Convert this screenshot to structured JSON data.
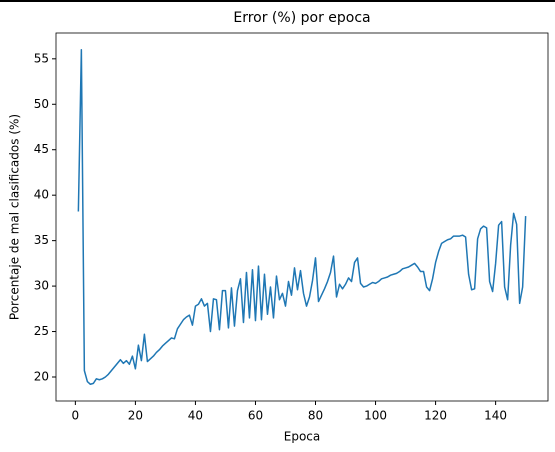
{
  "chart_data": {
    "type": "line",
    "title": "Error (%) por epoca",
    "xlabel": "Epoca",
    "ylabel": "Porcentaje de mal clasificados (%)",
    "x": [
      1,
      2,
      3,
      4,
      5,
      6,
      7,
      8,
      9,
      10,
      11,
      12,
      13,
      14,
      15,
      16,
      17,
      18,
      19,
      20,
      21,
      22,
      23,
      24,
      25,
      26,
      27,
      28,
      29,
      30,
      31,
      32,
      33,
      34,
      35,
      36,
      37,
      38,
      39,
      40,
      41,
      42,
      43,
      44,
      45,
      46,
      47,
      48,
      49,
      50,
      51,
      52,
      53,
      54,
      55,
      56,
      57,
      58,
      59,
      60,
      61,
      62,
      63,
      64,
      65,
      66,
      67,
      68,
      69,
      70,
      71,
      72,
      73,
      74,
      75,
      76,
      77,
      78,
      79,
      80,
      81,
      82,
      83,
      84,
      85,
      86,
      87,
      88,
      89,
      90,
      91,
      92,
      93,
      94,
      95,
      96,
      97,
      98,
      99,
      100,
      101,
      102,
      103,
      104,
      105,
      106,
      107,
      108,
      109,
      110,
      111,
      112,
      113,
      114,
      115,
      116,
      117,
      118,
      119,
      120,
      121,
      122,
      123,
      124,
      125,
      126,
      127,
      128,
      129,
      130,
      131,
      132,
      133,
      134,
      135,
      136,
      137,
      138,
      139,
      140,
      141,
      142,
      143,
      144,
      145,
      146,
      147,
      148,
      149,
      150
    ],
    "series": [
      {
        "name": "Error",
        "color": "#1f77b4",
        "values": [
          38.2,
          56,
          20.7,
          19.5,
          19.2,
          19.3,
          19.8,
          19.7,
          19.8,
          20.0,
          20.3,
          20.7,
          21.1,
          21.5,
          21.9,
          21.5,
          21.8,
          21.4,
          22.3,
          20.9,
          23.5,
          21.8,
          24.7,
          21.7,
          22.0,
          22.3,
          22.7,
          23.0,
          23.4,
          23.7,
          24.0,
          24.3,
          24.2,
          25.3,
          25.8,
          26.3,
          26.6,
          26.8,
          25.7,
          27.8,
          28.0,
          28.6,
          27.8,
          28.1,
          25.0,
          28.6,
          28.5,
          25.2,
          29.5,
          29.5,
          25.4,
          29.8,
          25.6,
          29.5,
          30.8,
          26.0,
          31.5,
          26.5,
          31.8,
          26.2,
          32.2,
          26.3,
          31.3,
          26.9,
          29.9,
          26.5,
          31.1,
          28.5,
          29.2,
          27.8,
          30.5,
          29.0,
          32.0,
          29.6,
          31.7,
          29.2,
          27.8,
          28.8,
          30.6,
          33.1,
          28.3,
          29.0,
          29.7,
          30.5,
          31.5,
          33.3,
          28.8,
          30.2,
          29.7,
          30.2,
          30.9,
          30.5,
          32.6,
          33.1,
          30.3,
          29.9,
          30.0,
          30.2,
          30.4,
          30.3,
          30.5,
          30.8,
          30.9,
          31.0,
          31.2,
          31.3,
          31.4,
          31.6,
          31.9,
          32.0,
          32.1,
          32.3,
          32.5,
          32.1,
          31.6,
          31.6,
          29.9,
          29.5,
          30.8,
          32.6,
          33.8,
          34.7,
          34.9,
          35.1,
          35.2,
          35.5,
          35.5,
          35.5,
          35.6,
          35.4,
          31.3,
          29.6,
          29.7,
          35.2,
          36.3,
          36.6,
          36.4,
          30.5,
          29.4,
          32.5,
          36.7,
          37.1,
          29.9,
          28.5,
          34.5,
          38.0,
          36.8,
          28.1,
          29.9,
          37.7
        ]
      }
    ],
    "xlim": [
      -6.45,
      157.45
    ],
    "xticks": [
      0,
      20,
      40,
      60,
      80,
      100,
      120,
      140
    ],
    "ylim": [
      17.36,
      57.84
    ],
    "yticks": [
      20,
      25,
      30,
      35,
      40,
      45,
      50,
      55
    ]
  }
}
